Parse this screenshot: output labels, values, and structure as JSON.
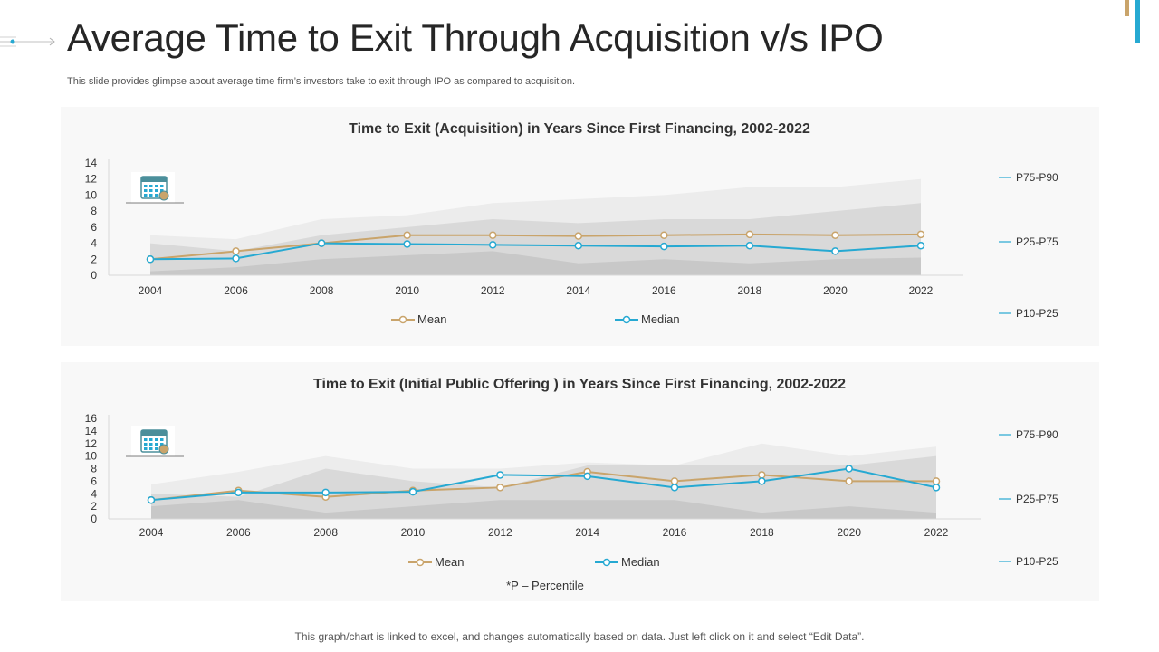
{
  "title": "Average Time to Exit Through Acquisition v/s IPO",
  "subtitle": "This slide provides glimpse about average time firm’s investors take to exit through IPO as compared to acquisition.",
  "footer": "This graph/chart is linked to excel, and changes automatically based on data. Just left click on it and select “Edit Data”.",
  "percentile_note": "*P – Percentile",
  "colors": {
    "mean": "#c9a46b",
    "median": "#26a9d2",
    "band_p75_p90": "#ececec",
    "band_p25_p75": "#d9d9d9",
    "band_p10_p25": "#c8c8c8",
    "panel_bg": "#f8f8f8",
    "band_legend_line": "#26a9d2"
  },
  "icons": [
    "calendar-icon"
  ],
  "chart_data": [
    {
      "type": "area",
      "title": "Time to Exit (Acquisition)  in Years Since First Financing, 2002-2022",
      "x": [
        2004,
        2006,
        2008,
        2010,
        2012,
        2014,
        2016,
        2018,
        2020,
        2022
      ],
      "x_ticks": [
        "2004",
        "2006",
        "2008",
        "2010",
        "2012",
        "2014",
        "2016",
        "2018",
        "2020",
        "2022"
      ],
      "y_ticks": [
        "0",
        "2",
        "4",
        "6",
        "8",
        "10",
        "12",
        "14"
      ],
      "ylim": [
        0,
        14
      ],
      "bands": [
        {
          "name": "P75-P90",
          "values": [
            5,
            4.5,
            7,
            7.5,
            9,
            9.5,
            10,
            11,
            11,
            12
          ]
        },
        {
          "name": "P25-P75",
          "values": [
            4,
            3,
            5,
            6,
            7,
            6.5,
            7,
            7,
            8,
            9
          ]
        },
        {
          "name": "P10-P25",
          "values": [
            0.5,
            1,
            2,
            2.5,
            3,
            1.5,
            2,
            1.5,
            2,
            2.2
          ]
        }
      ],
      "series": [
        {
          "name": "Mean",
          "values": [
            2,
            3,
            4,
            5,
            5,
            4.9,
            5,
            5.1,
            5,
            5.1
          ]
        },
        {
          "name": "Median",
          "values": [
            2,
            2.1,
            4,
            3.9,
            3.8,
            3.7,
            3.6,
            3.7,
            3,
            3.7
          ]
        }
      ],
      "legend": [
        "Mean",
        "Median"
      ],
      "band_labels": [
        "P75-P90",
        "P25-P75",
        "P10-P25"
      ]
    },
    {
      "type": "area",
      "title": "Time to Exit (Initial Public Offering ) in Years Since First Financing, 2002-2022",
      "x": [
        2004,
        2006,
        2008,
        2010,
        2012,
        2014,
        2016,
        2018,
        2020,
        2022
      ],
      "x_ticks": [
        "2004",
        "2006",
        "2008",
        "2010",
        "2012",
        "2014",
        "2016",
        "2018",
        "2020",
        "2022"
      ],
      "y_ticks": [
        "0",
        "2",
        "4",
        "6",
        "8",
        "10",
        "12",
        "14",
        "16"
      ],
      "ylim": [
        0,
        16
      ],
      "bands": [
        {
          "name": "P75-P90",
          "values": [
            5.5,
            7.5,
            10,
            8,
            8,
            9,
            8.5,
            12,
            10,
            11.5
          ]
        },
        {
          "name": "P25-P75",
          "values": [
            4,
            3.5,
            8,
            6,
            5,
            8.5,
            8.5,
            8.5,
            8.5,
            10
          ]
        },
        {
          "name": "P10-P25",
          "values": [
            2,
            3,
            1,
            2,
            3,
            3,
            3,
            1,
            2,
            1
          ]
        }
      ],
      "series": [
        {
          "name": "Mean",
          "values": [
            3,
            4.5,
            3.5,
            4.5,
            5,
            7.5,
            6,
            7,
            6,
            6
          ]
        },
        {
          "name": "Median",
          "values": [
            3,
            4.2,
            4.2,
            4.3,
            7,
            6.8,
            5,
            6,
            8,
            5
          ]
        }
      ],
      "legend": [
        "Mean",
        "Median"
      ],
      "band_labels": [
        "P75-P90",
        "P25-P75",
        "P10-P25"
      ]
    }
  ]
}
